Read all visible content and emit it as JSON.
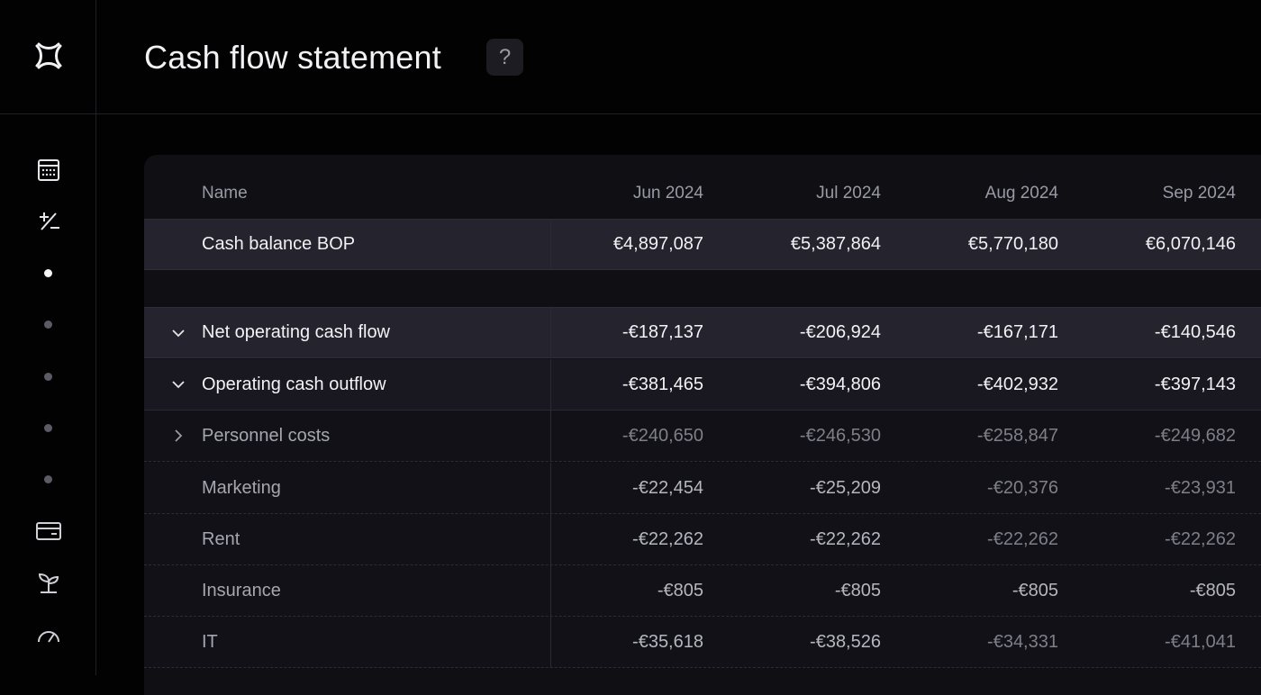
{
  "page": {
    "title": "Cash flow statement",
    "help_label": "?"
  },
  "sidebar": {
    "logo_icon": "app-logo-icon",
    "icons": [
      "calculator-icon",
      "plus-minus-icon",
      "card-icon",
      "seedling-icon",
      "gauge-icon"
    ],
    "dots": 5
  },
  "table": {
    "columns": [
      "Name",
      "Jun 2024",
      "Jul 2024",
      "Aug 2024",
      "Sep 2024"
    ],
    "cash_balance": {
      "label": "Cash balance BOP",
      "values": [
        "€4,897,087",
        "€5,387,864",
        "€5,770,180",
        "€6,070,146"
      ]
    },
    "net_operating": {
      "label": "Net operating cash flow",
      "values": [
        "-€187,137",
        "-€206,924",
        "-€167,171",
        "-€140,546"
      ]
    },
    "operating_outflow": {
      "label": "Operating cash outflow",
      "values": [
        "-€381,465",
        "-€394,806",
        "-€402,932",
        "-€397,143"
      ]
    },
    "sub_rows": [
      {
        "label": "Personnel costs",
        "values": [
          "-€240,650",
          "-€246,530",
          "-€258,847",
          "-€249,682"
        ]
      },
      {
        "label": "Marketing",
        "values": [
          "-€22,454",
          "-€25,209",
          "-€20,376",
          "-€23,931"
        ]
      },
      {
        "label": "Rent",
        "values": [
          "-€22,262",
          "-€22,262",
          "-€22,262",
          "-€22,262"
        ]
      },
      {
        "label": "Insurance",
        "values": [
          "-€805",
          "-€805",
          "-€805",
          "-€805"
        ]
      },
      {
        "label": "IT",
        "values": [
          "-€35,618",
          "-€38,526",
          "-€34,331",
          "-€41,041"
        ]
      }
    ]
  }
}
